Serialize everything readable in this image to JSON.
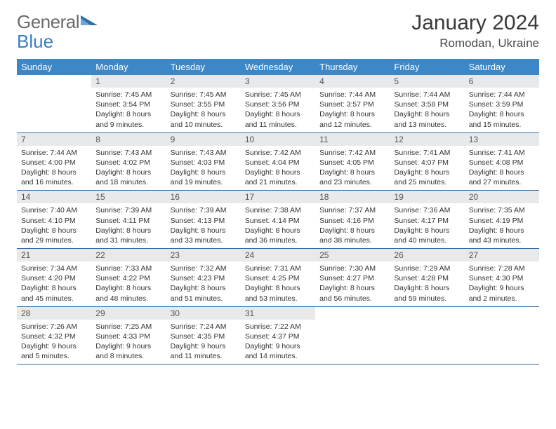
{
  "brand": {
    "part1": "General",
    "part2": "Blue"
  },
  "title": "January 2024",
  "location": "Romodan, Ukraine",
  "colors": {
    "header_bg": "#3b87c8",
    "header_fg": "#ffffff",
    "daynum_bg": "#e8e9ea",
    "daynum_fg": "#555555",
    "row_border": "#2f6ea8",
    "body_text": "#333333",
    "brand_gray": "#6a6a6a",
    "brand_blue": "#3b7fc4"
  },
  "typography": {
    "title_fontsize": 30,
    "location_fontsize": 17,
    "weekday_fontsize": 13,
    "daynum_fontsize": 12,
    "cell_fontsize": 10.5
  },
  "weekdays": [
    "Sunday",
    "Monday",
    "Tuesday",
    "Wednesday",
    "Thursday",
    "Friday",
    "Saturday"
  ],
  "weeks": [
    [
      null,
      {
        "n": "1",
        "sr": "7:45 AM",
        "ss": "3:54 PM",
        "dl": "8 hours and 9 minutes."
      },
      {
        "n": "2",
        "sr": "7:45 AM",
        "ss": "3:55 PM",
        "dl": "8 hours and 10 minutes."
      },
      {
        "n": "3",
        "sr": "7:45 AM",
        "ss": "3:56 PM",
        "dl": "8 hours and 11 minutes."
      },
      {
        "n": "4",
        "sr": "7:44 AM",
        "ss": "3:57 PM",
        "dl": "8 hours and 12 minutes."
      },
      {
        "n": "5",
        "sr": "7:44 AM",
        "ss": "3:58 PM",
        "dl": "8 hours and 13 minutes."
      },
      {
        "n": "6",
        "sr": "7:44 AM",
        "ss": "3:59 PM",
        "dl": "8 hours and 15 minutes."
      }
    ],
    [
      {
        "n": "7",
        "sr": "7:44 AM",
        "ss": "4:00 PM",
        "dl": "8 hours and 16 minutes."
      },
      {
        "n": "8",
        "sr": "7:43 AM",
        "ss": "4:02 PM",
        "dl": "8 hours and 18 minutes."
      },
      {
        "n": "9",
        "sr": "7:43 AM",
        "ss": "4:03 PM",
        "dl": "8 hours and 19 minutes."
      },
      {
        "n": "10",
        "sr": "7:42 AM",
        "ss": "4:04 PM",
        "dl": "8 hours and 21 minutes."
      },
      {
        "n": "11",
        "sr": "7:42 AM",
        "ss": "4:05 PM",
        "dl": "8 hours and 23 minutes."
      },
      {
        "n": "12",
        "sr": "7:41 AM",
        "ss": "4:07 PM",
        "dl": "8 hours and 25 minutes."
      },
      {
        "n": "13",
        "sr": "7:41 AM",
        "ss": "4:08 PM",
        "dl": "8 hours and 27 minutes."
      }
    ],
    [
      {
        "n": "14",
        "sr": "7:40 AM",
        "ss": "4:10 PM",
        "dl": "8 hours and 29 minutes."
      },
      {
        "n": "15",
        "sr": "7:39 AM",
        "ss": "4:11 PM",
        "dl": "8 hours and 31 minutes."
      },
      {
        "n": "16",
        "sr": "7:39 AM",
        "ss": "4:13 PM",
        "dl": "8 hours and 33 minutes."
      },
      {
        "n": "17",
        "sr": "7:38 AM",
        "ss": "4:14 PM",
        "dl": "8 hours and 36 minutes."
      },
      {
        "n": "18",
        "sr": "7:37 AM",
        "ss": "4:16 PM",
        "dl": "8 hours and 38 minutes."
      },
      {
        "n": "19",
        "sr": "7:36 AM",
        "ss": "4:17 PM",
        "dl": "8 hours and 40 minutes."
      },
      {
        "n": "20",
        "sr": "7:35 AM",
        "ss": "4:19 PM",
        "dl": "8 hours and 43 minutes."
      }
    ],
    [
      {
        "n": "21",
        "sr": "7:34 AM",
        "ss": "4:20 PM",
        "dl": "8 hours and 45 minutes."
      },
      {
        "n": "22",
        "sr": "7:33 AM",
        "ss": "4:22 PM",
        "dl": "8 hours and 48 minutes."
      },
      {
        "n": "23",
        "sr": "7:32 AM",
        "ss": "4:23 PM",
        "dl": "8 hours and 51 minutes."
      },
      {
        "n": "24",
        "sr": "7:31 AM",
        "ss": "4:25 PM",
        "dl": "8 hours and 53 minutes."
      },
      {
        "n": "25",
        "sr": "7:30 AM",
        "ss": "4:27 PM",
        "dl": "8 hours and 56 minutes."
      },
      {
        "n": "26",
        "sr": "7:29 AM",
        "ss": "4:28 PM",
        "dl": "8 hours and 59 minutes."
      },
      {
        "n": "27",
        "sr": "7:28 AM",
        "ss": "4:30 PM",
        "dl": "9 hours and 2 minutes."
      }
    ],
    [
      {
        "n": "28",
        "sr": "7:26 AM",
        "ss": "4:32 PM",
        "dl": "9 hours and 5 minutes."
      },
      {
        "n": "29",
        "sr": "7:25 AM",
        "ss": "4:33 PM",
        "dl": "9 hours and 8 minutes."
      },
      {
        "n": "30",
        "sr": "7:24 AM",
        "ss": "4:35 PM",
        "dl": "9 hours and 11 minutes."
      },
      {
        "n": "31",
        "sr": "7:22 AM",
        "ss": "4:37 PM",
        "dl": "9 hours and 14 minutes."
      },
      null,
      null,
      null
    ]
  ],
  "labels": {
    "sunrise": "Sunrise:",
    "sunset": "Sunset:",
    "daylight": "Daylight:"
  }
}
